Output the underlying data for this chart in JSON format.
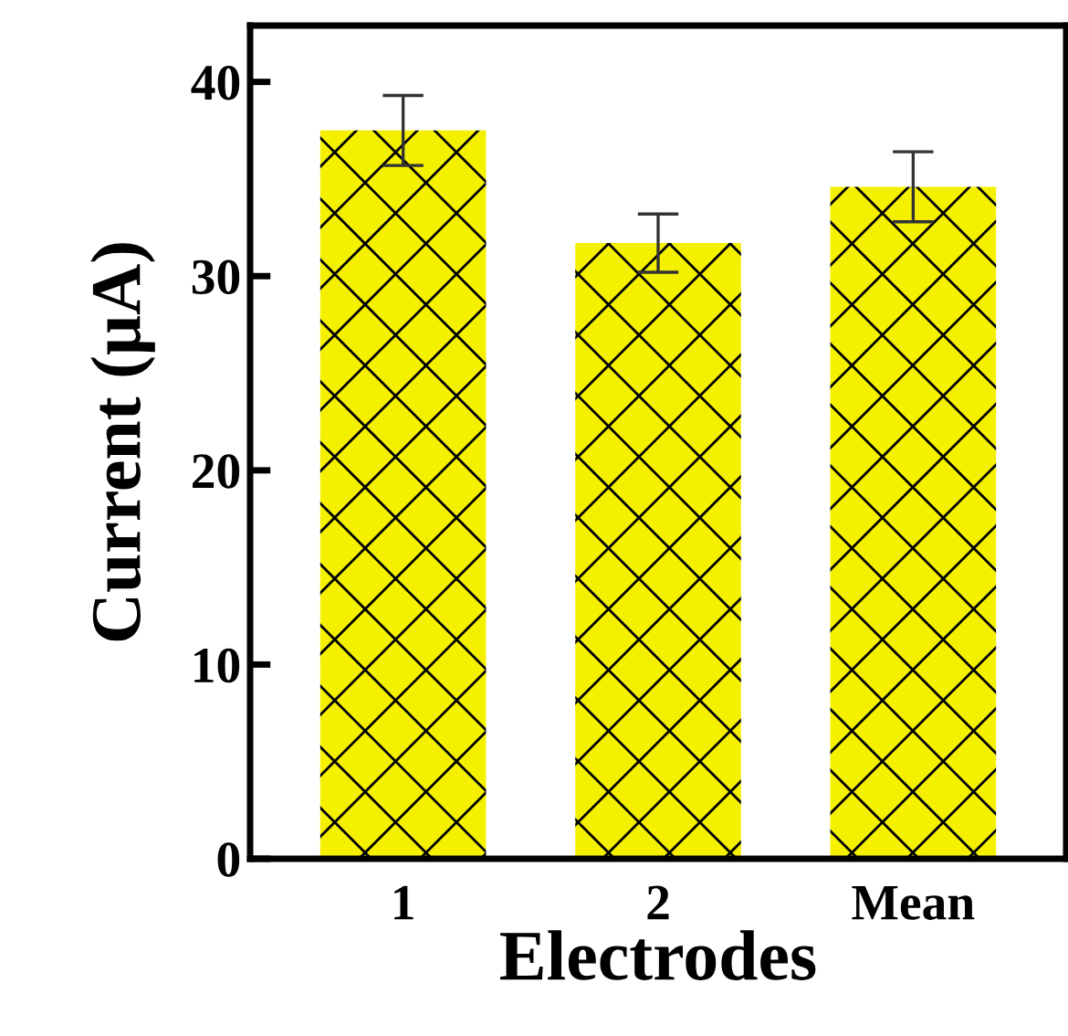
{
  "chart_data": {
    "type": "bar",
    "xlabel": "Electrodes",
    "ylabel": "Current (μA)",
    "categories": [
      "1",
      "2",
      "Mean"
    ],
    "values": [
      37.5,
      31.7,
      34.6
    ],
    "errors": [
      1.8,
      1.5,
      1.8
    ],
    "color": "#f5f000",
    "ylim": [
      0,
      42.9
    ],
    "yticks": [
      0,
      10,
      20,
      30,
      40
    ],
    "grid": false,
    "legend": false
  }
}
